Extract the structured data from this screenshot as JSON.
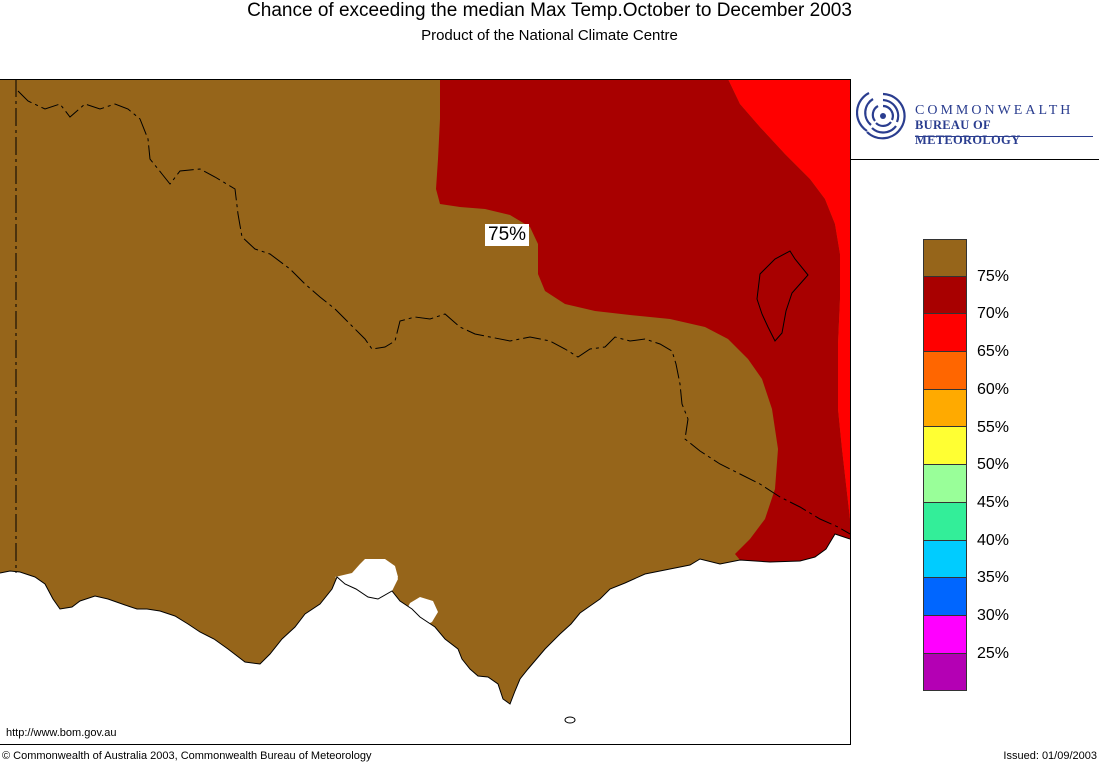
{
  "header": {
    "title": "Chance of exceeding the median Max Temp.October to December 2003",
    "subtitle": "Product of the National Climate Centre"
  },
  "logo": {
    "line1": "COMMONWEALTH",
    "line2": "BUREAU OF METEOROLOGY"
  },
  "map": {
    "region_label": "75%",
    "colors": {
      "land_75": "#96651a",
      "land_70": "#a80000",
      "land_65": "#ff0000",
      "sea": "#ffffff",
      "border": "#000000"
    }
  },
  "legend": {
    "items": [
      {
        "label": "75%",
        "color": "#96651a"
      },
      {
        "label": "70%",
        "color": "#a80000"
      },
      {
        "label": "65%",
        "color": "#ff0000"
      },
      {
        "label": "60%",
        "color": "#ff6600"
      },
      {
        "label": "55%",
        "color": "#ffaa00"
      },
      {
        "label": "50%",
        "color": "#ffff33"
      },
      {
        "label": "45%",
        "color": "#99ff99"
      },
      {
        "label": "40%",
        "color": "#33ee99"
      },
      {
        "label": "35%",
        "color": "#00ccff"
      },
      {
        "label": "30%",
        "color": "#0066ff"
      },
      {
        "label": "25%",
        "color": "#ff00ff"
      },
      {
        "label": "",
        "color": "#b400b4"
      }
    ]
  },
  "footer": {
    "url": "http://www.bom.gov.au",
    "copyright": "© Commonwealth of Australia 2003, Commonwealth Bureau of Meteorology",
    "issued": "Issued: 01/09/2003"
  }
}
